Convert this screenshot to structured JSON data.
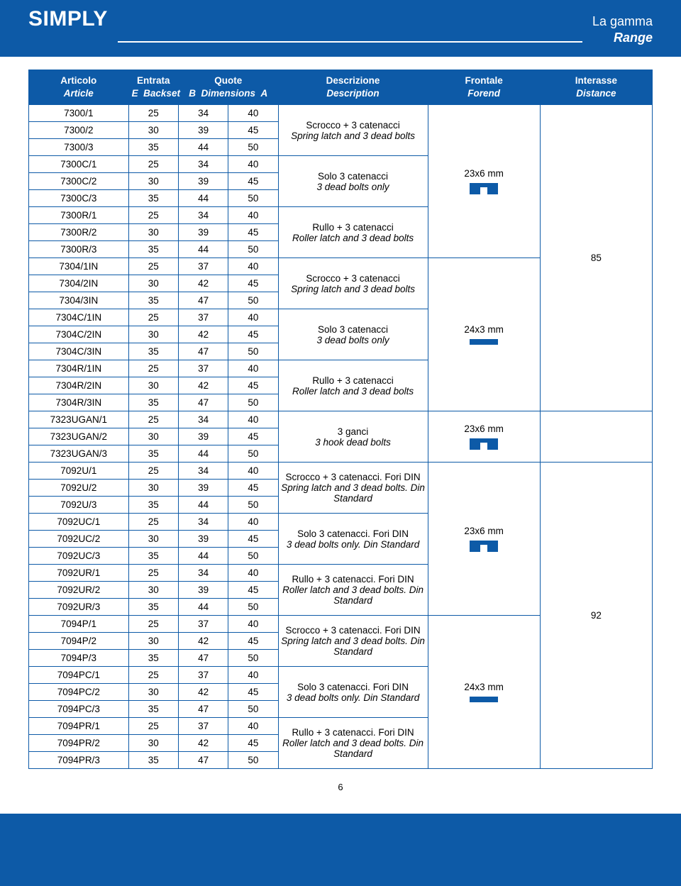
{
  "header": {
    "brand": "SIMPLY",
    "range_it": "La gamma",
    "range_en": "Range"
  },
  "columns": {
    "article_it": "Articolo",
    "article_en": "Article",
    "backset_label": "Entrata",
    "backset_en": "Backset",
    "backset_e": "E",
    "dims_label": "Quote",
    "dims_en": "Dimensions",
    "dims_b": "B",
    "dims_a": "A",
    "desc_it": "Descrizione",
    "desc_en": "Description",
    "forend_it": "Frontale",
    "forend_en": "Forend",
    "dist_it": "Interasse",
    "dist_en": "Distance"
  },
  "forends": {
    "a": "23x6 mm",
    "b": "24x3 mm"
  },
  "distances": {
    "d85": "85",
    "d92": "92"
  },
  "groups": [
    {
      "id": "g1",
      "desc_it": "Scrocco + 3 catenacci",
      "desc_en": "Spring latch and 3 dead bolts",
      "rows": [
        {
          "art": "7300/1",
          "e": "25",
          "b": "34",
          "a": "40"
        },
        {
          "art": "7300/2",
          "e": "30",
          "b": "39",
          "a": "45"
        },
        {
          "art": "7300/3",
          "e": "35",
          "b": "44",
          "a": "50"
        }
      ]
    },
    {
      "id": "g2",
      "desc_it": "Solo 3 catenacci",
      "desc_en": "3 dead bolts only",
      "rows": [
        {
          "art": "7300C/1",
          "e": "25",
          "b": "34",
          "a": "40"
        },
        {
          "art": "7300C/2",
          "e": "30",
          "b": "39",
          "a": "45"
        },
        {
          "art": "7300C/3",
          "e": "35",
          "b": "44",
          "a": "50"
        }
      ]
    },
    {
      "id": "g3",
      "desc_it": "Rullo + 3 catenacci",
      "desc_en": "Roller latch and 3 dead bolts",
      "rows": [
        {
          "art": "7300R/1",
          "e": "25",
          "b": "34",
          "a": "40"
        },
        {
          "art": "7300R/2",
          "e": "30",
          "b": "39",
          "a": "45"
        },
        {
          "art": "7300R/3",
          "e": "35",
          "b": "44",
          "a": "50"
        }
      ]
    },
    {
      "id": "g4",
      "desc_it": "Scrocco + 3 catenacci",
      "desc_en": "Spring latch and 3 dead bolts",
      "rows": [
        {
          "art": "7304/1IN",
          "e": "25",
          "b": "37",
          "a": "40"
        },
        {
          "art": "7304/2IN",
          "e": "30",
          "b": "42",
          "a": "45"
        },
        {
          "art": "7304/3IN",
          "e": "35",
          "b": "47",
          "a": "50"
        }
      ]
    },
    {
      "id": "g5",
      "desc_it": "Solo 3 catenacci",
      "desc_en": "3 dead bolts only",
      "rows": [
        {
          "art": "7304C/1IN",
          "e": "25",
          "b": "37",
          "a": "40"
        },
        {
          "art": "7304C/2IN",
          "e": "30",
          "b": "42",
          "a": "45"
        },
        {
          "art": "7304C/3IN",
          "e": "35",
          "b": "47",
          "a": "50"
        }
      ]
    },
    {
      "id": "g6",
      "desc_it": "Rullo + 3 catenacci",
      "desc_en": "Roller latch and 3 dead bolts",
      "rows": [
        {
          "art": "7304R/1IN",
          "e": "25",
          "b": "37",
          "a": "40"
        },
        {
          "art": "7304R/2IN",
          "e": "30",
          "b": "42",
          "a": "45"
        },
        {
          "art": "7304R/3IN",
          "e": "35",
          "b": "47",
          "a": "50"
        }
      ]
    },
    {
      "id": "g7",
      "desc_it": "3 ganci",
      "desc_en": "3 hook dead bolts",
      "rows": [
        {
          "art": "7323UGAN/1",
          "e": "25",
          "b": "34",
          "a": "40"
        },
        {
          "art": "7323UGAN/2",
          "e": "30",
          "b": "39",
          "a": "45"
        },
        {
          "art": "7323UGAN/3",
          "e": "35",
          "b": "44",
          "a": "50"
        }
      ]
    },
    {
      "id": "g8",
      "desc_it": "Scrocco + 3 catenacci. Fori DIN",
      "desc_en": "Spring latch and 3 dead bolts. Din Standard",
      "rows": [
        {
          "art": "7092U/1",
          "e": "25",
          "b": "34",
          "a": "40"
        },
        {
          "art": "7092U/2",
          "e": "30",
          "b": "39",
          "a": "45"
        },
        {
          "art": "7092U/3",
          "e": "35",
          "b": "44",
          "a": "50"
        }
      ]
    },
    {
      "id": "g9",
      "desc_it": "Solo 3 catenacci. Fori DIN",
      "desc_en": "3 dead bolts only. Din Standard",
      "rows": [
        {
          "art": "7092UC/1",
          "e": "25",
          "b": "34",
          "a": "40"
        },
        {
          "art": "7092UC/2",
          "e": "30",
          "b": "39",
          "a": "45"
        },
        {
          "art": "7092UC/3",
          "e": "35",
          "b": "44",
          "a": "50"
        }
      ]
    },
    {
      "id": "g10",
      "desc_it": "Rullo + 3 catenacci. Fori DIN",
      "desc_en": "Roller latch and 3 dead bolts. Din Standard",
      "rows": [
        {
          "art": "7092UR/1",
          "e": "25",
          "b": "34",
          "a": "40"
        },
        {
          "art": "7092UR/2",
          "e": "30",
          "b": "39",
          "a": "45"
        },
        {
          "art": "7092UR/3",
          "e": "35",
          "b": "44",
          "a": "50"
        }
      ]
    },
    {
      "id": "g11",
      "desc_it": "Scrocco + 3 catenacci. Fori DIN",
      "desc_en": "Spring latch and 3 dead bolts. Din Standard",
      "rows": [
        {
          "art": "7094P/1",
          "e": "25",
          "b": "37",
          "a": "40"
        },
        {
          "art": "7094P/2",
          "e": "30",
          "b": "42",
          "a": "45"
        },
        {
          "art": "7094P/3",
          "e": "35",
          "b": "47",
          "a": "50"
        }
      ]
    },
    {
      "id": "g12",
      "desc_it": "Solo 3 catenacci. Fori DIN",
      "desc_en": "3 dead bolts only. Din Standard",
      "rows": [
        {
          "art": "7094PC/1",
          "e": "25",
          "b": "37",
          "a": "40"
        },
        {
          "art": "7094PC/2",
          "e": "30",
          "b": "42",
          "a": "45"
        },
        {
          "art": "7094PC/3",
          "e": "35",
          "b": "47",
          "a": "50"
        }
      ]
    },
    {
      "id": "g13",
      "desc_it": "Rullo + 3 catenacci. Fori DIN",
      "desc_en": "Roller latch and 3 dead bolts. Din Standard",
      "rows": [
        {
          "art": "7094PR/1",
          "e": "25",
          "b": "37",
          "a": "40"
        },
        {
          "art": "7094PR/2",
          "e": "30",
          "b": "42",
          "a": "45"
        },
        {
          "art": "7094PR/3",
          "e": "35",
          "b": "47",
          "a": "50"
        }
      ]
    }
  ],
  "page_number": "6",
  "colors": {
    "brand_blue": "#0d5aa7",
    "white": "#ffffff"
  }
}
